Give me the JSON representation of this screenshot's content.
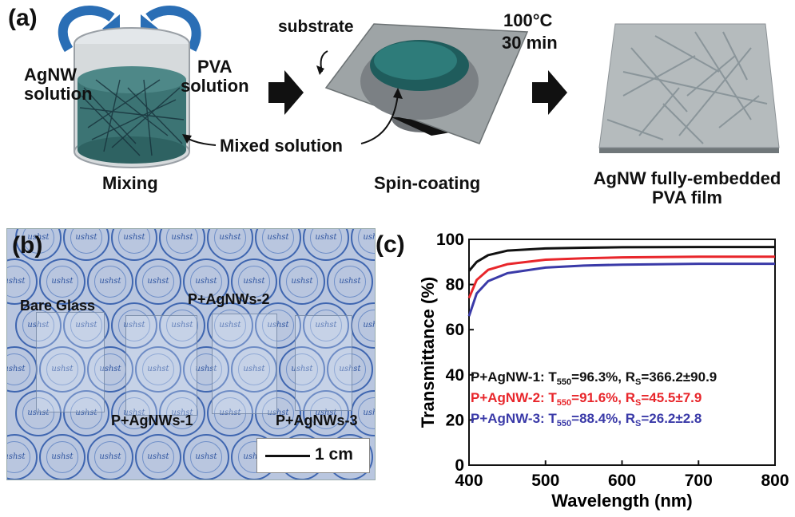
{
  "panel_a": {
    "tag": "(a)",
    "agnw_solution": [
      "AgNW",
      "solution"
    ],
    "pva_solution": [
      "PVA",
      "solution"
    ],
    "mixed_solution": "Mixed solution",
    "mixing": "Mixing",
    "substrate": "substrate",
    "spin_coating": "Spin-coating",
    "temp": "100°C",
    "time": "30 min",
    "film_caption": [
      "AgNW fully-embedded",
      "PVA film"
    ]
  },
  "panel_b": {
    "tag": "(b)",
    "stamp_text": "ushst",
    "bare_glass": "Bare Glass",
    "p1": "P+AgNWs-1",
    "p2": "P+AgNWs-2",
    "p3": "P+AgNWs-3",
    "scale": "1 cm"
  },
  "panel_c": {
    "tag": "(c)"
  },
  "chart_data": {
    "type": "line",
    "xlabel": "Wavelength (nm)",
    "ylabel": "Transmittance (%)",
    "xlim": [
      400,
      800
    ],
    "ylim": [
      0,
      100
    ],
    "xticks": [
      400,
      500,
      600,
      700,
      800
    ],
    "yticks": [
      0,
      20,
      40,
      60,
      80,
      100
    ],
    "x": [
      400,
      410,
      425,
      450,
      500,
      550,
      600,
      700,
      800
    ],
    "series": [
      {
        "name": "P+AgNW-1",
        "color": "#111111",
        "values": [
          86,
          90,
          93,
          95,
          96,
          96.3,
          96.5,
          96.6,
          96.6
        ],
        "legend": {
          "prefix": "P+AgNW-1: T",
          "sub1": "550",
          "mid": "=96.3%, R",
          "sub2": "S",
          "suffix": "=366.2±90.9"
        }
      },
      {
        "name": "P+AgNW-2",
        "color": "#e8262b",
        "values": [
          74,
          82,
          86.5,
          89,
          91,
          91.6,
          92,
          92.3,
          92.3
        ],
        "legend": {
          "prefix": "P+AgNW-2: T",
          "sub1": "550",
          "mid": "=91.6%, R",
          "sub2": "S",
          "suffix": "=45.5±7.9"
        }
      },
      {
        "name": "P+AgNW-3",
        "color": "#3a3aa8",
        "values": [
          66,
          76,
          81.5,
          85,
          87.5,
          88.4,
          88.8,
          89.2,
          89.2
        ],
        "legend": {
          "prefix": "P+AgNW-3: T",
          "sub1": "550",
          "mid": "=88.4%, R",
          "sub2": "S",
          "suffix": "=26.2±2.8"
        }
      }
    ]
  }
}
